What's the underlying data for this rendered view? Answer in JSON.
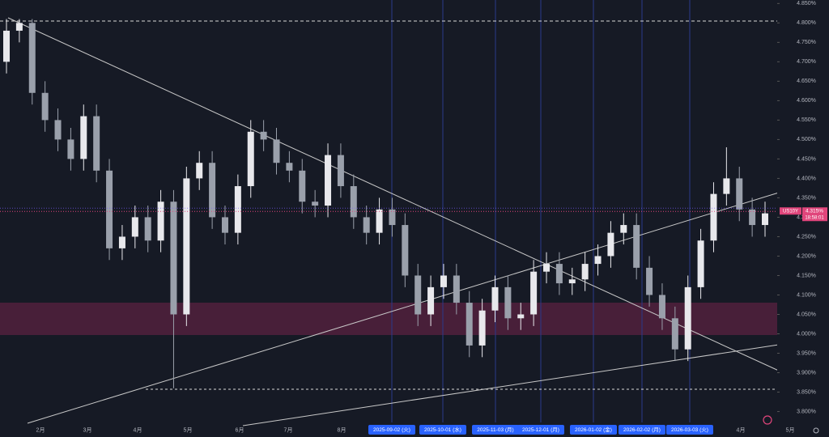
{
  "chart_data": {
    "type": "candlestick",
    "symbol": "US10Y",
    "last_price": {
      "value": 4.315,
      "label": "4.315%"
    },
    "countdown": "18:58:01",
    "up_color": "#e8e8ec",
    "down_color": "#9aa0ab",
    "categories": [
      null,
      null,
      null,
      null,
      null,
      null,
      null,
      null,
      null,
      null,
      null,
      null,
      null,
      null,
      null,
      null,
      null,
      null,
      null,
      null,
      null,
      null,
      null,
      null,
      null,
      null,
      null,
      null,
      null,
      null,
      null,
      null,
      null,
      null,
      null,
      null,
      null,
      null,
      null,
      null,
      null,
      null,
      null,
      null,
      null,
      null,
      null,
      null,
      null,
      null,
      null,
      null,
      null,
      null,
      null,
      null,
      null,
      null,
      null,
      null
    ],
    "open": [
      4.7,
      4.78,
      4.8,
      4.62,
      4.55,
      4.5,
      4.45,
      4.56,
      4.42,
      4.22,
      4.25,
      4.3,
      4.24,
      4.34,
      4.05,
      4.4,
      4.44,
      4.3,
      4.26,
      4.38,
      4.52,
      4.5,
      4.44,
      4.42,
      4.34,
      4.33,
      4.46,
      4.38,
      4.3,
      4.26,
      4.32,
      4.28,
      4.15,
      4.05,
      4.12,
      4.15,
      4.08,
      3.97,
      4.06,
      4.12,
      4.04,
      4.05,
      4.16,
      4.18,
      4.13,
      4.14,
      4.18,
      4.2,
      4.26,
      4.28,
      4.17,
      4.1,
      4.04,
      3.96,
      4.12,
      4.24,
      4.36,
      4.4,
      4.32,
      4.28
    ],
    "high": [
      4.81,
      4.81,
      4.81,
      4.65,
      4.58,
      4.53,
      4.59,
      4.59,
      4.45,
      4.28,
      4.33,
      4.33,
      4.37,
      4.37,
      4.43,
      4.47,
      4.47,
      4.33,
      4.41,
      4.55,
      4.55,
      4.53,
      4.47,
      4.45,
      4.37,
      4.49,
      4.49,
      4.41,
      4.33,
      4.35,
      4.35,
      4.31,
      4.18,
      4.15,
      4.18,
      4.18,
      4.11,
      4.09,
      4.15,
      4.15,
      4.08,
      4.19,
      4.21,
      4.21,
      4.17,
      4.21,
      4.23,
      4.29,
      4.31,
      4.31,
      4.2,
      4.13,
      4.07,
      4.15,
      4.27,
      4.39,
      4.48,
      4.43,
      4.35,
      4.34
    ],
    "low": [
      4.67,
      4.75,
      4.59,
      4.52,
      4.47,
      4.42,
      4.42,
      4.39,
      4.19,
      4.19,
      4.22,
      4.21,
      4.21,
      3.86,
      4.02,
      4.37,
      4.27,
      4.23,
      4.23,
      4.35,
      4.47,
      4.41,
      4.39,
      4.31,
      4.3,
      4.3,
      4.35,
      4.27,
      4.23,
      4.23,
      4.25,
      4.12,
      4.02,
      4.02,
      4.09,
      4.05,
      3.94,
      3.94,
      4.03,
      4.01,
      4.01,
      4.02,
      4.13,
      4.1,
      4.1,
      4.11,
      4.15,
      4.17,
      4.23,
      4.14,
      4.07,
      4.01,
      3.93,
      3.93,
      4.09,
      4.21,
      4.33,
      4.29,
      4.25,
      4.25
    ],
    "close": [
      4.78,
      4.8,
      4.62,
      4.55,
      4.5,
      4.45,
      4.56,
      4.42,
      4.22,
      4.25,
      4.3,
      4.24,
      4.34,
      4.05,
      4.4,
      4.44,
      4.3,
      4.26,
      4.38,
      4.52,
      4.5,
      4.44,
      4.42,
      4.34,
      4.33,
      4.46,
      4.38,
      4.3,
      4.26,
      4.32,
      4.28,
      4.15,
      4.05,
      4.12,
      4.15,
      4.08,
      3.97,
      4.06,
      4.12,
      4.04,
      4.05,
      4.16,
      4.18,
      4.13,
      4.14,
      4.18,
      4.2,
      4.26,
      4.28,
      4.17,
      4.1,
      4.04,
      3.96,
      4.12,
      4.24,
      4.36,
      4.4,
      4.32,
      4.28,
      4.31
    ],
    "ylim": [
      3.772,
      4.859
    ],
    "yticks": [
      {
        "value": 3.8,
        "label": "3.800%"
      },
      {
        "value": 3.85,
        "label": "3.850%"
      },
      {
        "value": 3.9,
        "label": "3.900%"
      },
      {
        "value": 3.95,
        "label": "3.950%"
      },
      {
        "value": 4.0,
        "label": "4.000%"
      },
      {
        "value": 4.05,
        "label": "4.050%"
      },
      {
        "value": 4.1,
        "label": "4.100%"
      },
      {
        "value": 4.15,
        "label": "4.150%"
      },
      {
        "value": 4.2,
        "label": "4.200%"
      },
      {
        "value": 4.25,
        "label": "4.250%"
      },
      {
        "value": 4.3,
        "label": "4.300%"
      },
      {
        "value": 4.35,
        "label": "4.350%"
      },
      {
        "value": 4.4,
        "label": "4.400%"
      },
      {
        "value": 4.45,
        "label": "4.450%"
      },
      {
        "value": 4.5,
        "label": "4.500%"
      },
      {
        "value": 4.55,
        "label": "4.550%"
      },
      {
        "value": 4.6,
        "label": "4.600%"
      },
      {
        "value": 4.65,
        "label": "4.650%"
      },
      {
        "value": 4.7,
        "label": "4.700%"
      },
      {
        "value": 4.75,
        "label": "4.750%"
      },
      {
        "value": 4.8,
        "label": "4.800%"
      },
      {
        "value": 4.85,
        "label": "4.850%"
      }
    ],
    "xtick_labels": [
      "2月",
      "3月",
      "4月",
      "5月",
      "6月",
      "7月",
      "8月",
      "2025-09-02 (火)",
      "2025-10-01 (水)",
      "2025-11-03 (月)",
      "2025-12-01 (月)",
      "2026-01-02 (金)",
      "2026-02-02 (月)",
      "2026-03-03 (火)",
      "4月",
      "5月"
    ]
  }
}
